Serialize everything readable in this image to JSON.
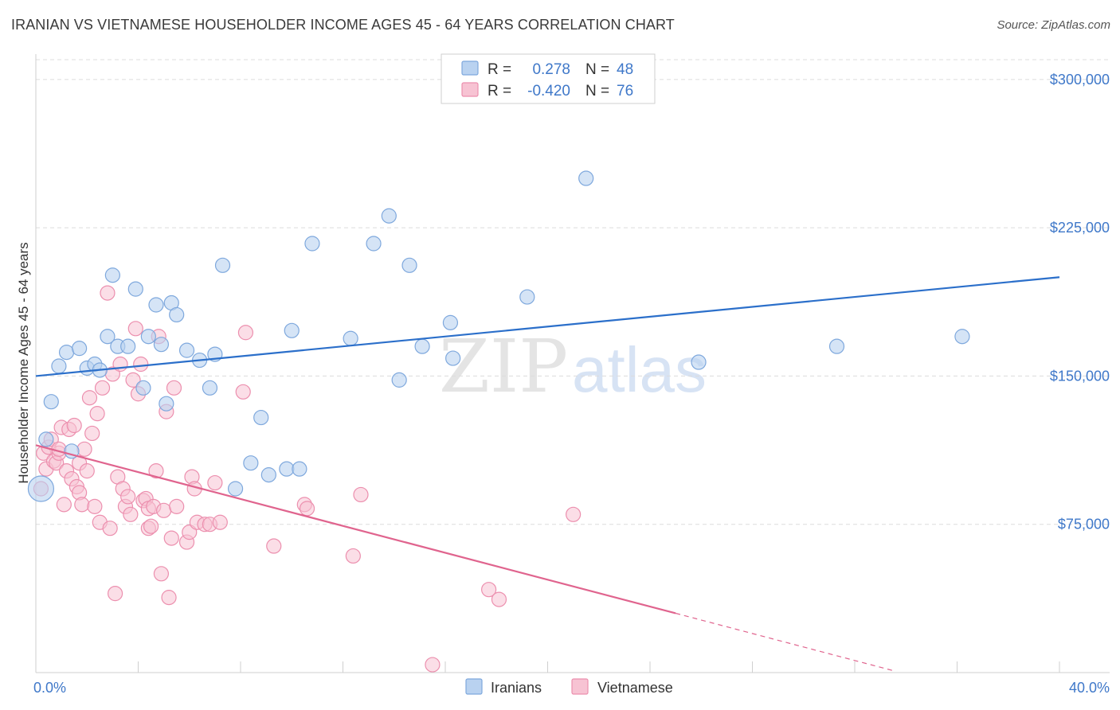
{
  "title": "IRANIAN VS VIETNAMESE HOUSEHOLDER INCOME AGES 45 - 64 YEARS CORRELATION CHART",
  "source": "Source: ZipAtlas.com",
  "watermark": {
    "part1": "ZIP",
    "part2": "atlas"
  },
  "colors": {
    "iranian_fill": "#b9d2f0",
    "iranian_stroke": "#7ea8dd",
    "iranian_line": "#2b6fca",
    "vietnamese_fill": "#f7c3d3",
    "vietnamese_stroke": "#ec8fae",
    "vietnamese_line": "#e0648e",
    "tick_text": "#3f78c9",
    "grid": "#dcdcdc"
  },
  "legend": {
    "rows": [
      {
        "r_label": "R =",
        "r_value": "0.278",
        "n_label": "N =",
        "n_value": "48"
      },
      {
        "r_label": "R =",
        "r_value": "-0.420",
        "n_label": "N =",
        "n_value": "76"
      }
    ]
  },
  "chart_data": {
    "type": "scatter",
    "title": "IRANIAN VS VIETNAMESE HOUSEHOLDER INCOME AGES 45 - 64 YEARS CORRELATION CHART",
    "xlabel": "",
    "ylabel": "Householder Income Ages 45 - 64 years",
    "xlim": [
      0,
      40
    ],
    "ylim": [
      0,
      310000
    ],
    "x_tick_labels": [
      "0.0%",
      "40.0%"
    ],
    "y_ticks": [
      75000,
      150000,
      225000,
      300000
    ],
    "y_tick_labels": [
      "$75,000",
      "$150,000",
      "$225,000",
      "$300,000"
    ],
    "grid": true,
    "legend_position": "top-center",
    "series": [
      {
        "name": "Iranians",
        "trend": {
          "x": [
            0,
            40
          ],
          "y": [
            150000,
            200000
          ]
        },
        "points": [
          [
            0.2,
            93000
          ],
          [
            0.4,
            118000
          ],
          [
            0.6,
            137000
          ],
          [
            0.9,
            155000
          ],
          [
            1.2,
            162000
          ],
          [
            1.4,
            112000
          ],
          [
            1.7,
            164000
          ],
          [
            2.0,
            154000
          ],
          [
            2.3,
            156000
          ],
          [
            2.5,
            153000
          ],
          [
            2.8,
            170000
          ],
          [
            3.0,
            201000
          ],
          [
            3.2,
            165000
          ],
          [
            3.6,
            165000
          ],
          [
            3.9,
            194000
          ],
          [
            4.2,
            144000
          ],
          [
            4.4,
            170000
          ],
          [
            4.7,
            186000
          ],
          [
            4.9,
            166000
          ],
          [
            5.1,
            136000
          ],
          [
            5.3,
            187000
          ],
          [
            5.5,
            181000
          ],
          [
            5.9,
            163000
          ],
          [
            6.4,
            158000
          ],
          [
            6.8,
            144000
          ],
          [
            7.0,
            161000
          ],
          [
            7.3,
            206000
          ],
          [
            7.8,
            93000
          ],
          [
            8.4,
            106000
          ],
          [
            8.8,
            129000
          ],
          [
            9.1,
            100000
          ],
          [
            9.8,
            103000
          ],
          [
            10.0,
            173000
          ],
          [
            10.3,
            103000
          ],
          [
            10.8,
            217000
          ],
          [
            12.3,
            169000
          ],
          [
            13.2,
            217000
          ],
          [
            13.8,
            231000
          ],
          [
            14.2,
            148000
          ],
          [
            14.6,
            206000
          ],
          [
            15.1,
            165000
          ],
          [
            16.2,
            177000
          ],
          [
            16.3,
            159000
          ],
          [
            19.2,
            190000
          ],
          [
            21.5,
            250000
          ],
          [
            25.9,
            157000
          ],
          [
            31.3,
            165000
          ],
          [
            36.2,
            170000
          ]
        ]
      },
      {
        "name": "Vietnamese",
        "trend": {
          "x": [
            0,
            25
          ],
          "y": [
            115000,
            30000
          ]
        },
        "trend_dashed": {
          "x": [
            25,
            33.5
          ],
          "y": [
            30000,
            1000
          ]
        },
        "points": [
          [
            0.2,
            93000
          ],
          [
            0.3,
            111000
          ],
          [
            0.4,
            103000
          ],
          [
            0.5,
            114000
          ],
          [
            0.6,
            118000
          ],
          [
            0.7,
            107000
          ],
          [
            0.8,
            106000
          ],
          [
            0.9,
            111000
          ],
          [
            0.9,
            113000
          ],
          [
            1.0,
            124000
          ],
          [
            1.2,
            102000
          ],
          [
            1.1,
            85000
          ],
          [
            1.3,
            123000
          ],
          [
            1.4,
            98000
          ],
          [
            1.6,
            94000
          ],
          [
            1.5,
            125000
          ],
          [
            1.7,
            91000
          ],
          [
            1.7,
            106000
          ],
          [
            1.8,
            85000
          ],
          [
            1.9,
            113000
          ],
          [
            2.0,
            102000
          ],
          [
            2.1,
            139000
          ],
          [
            2.2,
            121000
          ],
          [
            2.3,
            84000
          ],
          [
            2.4,
            131000
          ],
          [
            2.5,
            76000
          ],
          [
            2.6,
            144000
          ],
          [
            2.8,
            192000
          ],
          [
            2.9,
            73000
          ],
          [
            3.0,
            151000
          ],
          [
            3.1,
            40000
          ],
          [
            3.2,
            99000
          ],
          [
            3.3,
            156000
          ],
          [
            3.4,
            93000
          ],
          [
            3.5,
            84000
          ],
          [
            3.6,
            89000
          ],
          [
            3.7,
            80000
          ],
          [
            3.8,
            148000
          ],
          [
            3.9,
            174000
          ],
          [
            4.0,
            141000
          ],
          [
            4.1,
            156000
          ],
          [
            4.2,
            87000
          ],
          [
            4.3,
            88000
          ],
          [
            4.4,
            73000
          ],
          [
            4.4,
            83000
          ],
          [
            4.5,
            74000
          ],
          [
            4.6,
            84000
          ],
          [
            4.7,
            102000
          ],
          [
            4.8,
            170000
          ],
          [
            4.9,
            50000
          ],
          [
            5.0,
            82000
          ],
          [
            5.1,
            132000
          ],
          [
            5.2,
            38000
          ],
          [
            5.3,
            68000
          ],
          [
            5.4,
            144000
          ],
          [
            5.5,
            84000
          ],
          [
            5.9,
            66000
          ],
          [
            6.0,
            71000
          ],
          [
            6.1,
            99000
          ],
          [
            6.2,
            93000
          ],
          [
            6.3,
            76000
          ],
          [
            6.6,
            75000
          ],
          [
            6.8,
            75000
          ],
          [
            7.0,
            96000
          ],
          [
            7.2,
            76000
          ],
          [
            8.1,
            142000
          ],
          [
            8.2,
            172000
          ],
          [
            9.3,
            64000
          ],
          [
            10.5,
            85000
          ],
          [
            10.6,
            83000
          ],
          [
            12.4,
            59000
          ],
          [
            12.7,
            90000
          ],
          [
            15.5,
            4000
          ],
          [
            17.7,
            42000
          ],
          [
            18.1,
            37000
          ],
          [
            21.0,
            80000
          ]
        ]
      }
    ]
  }
}
